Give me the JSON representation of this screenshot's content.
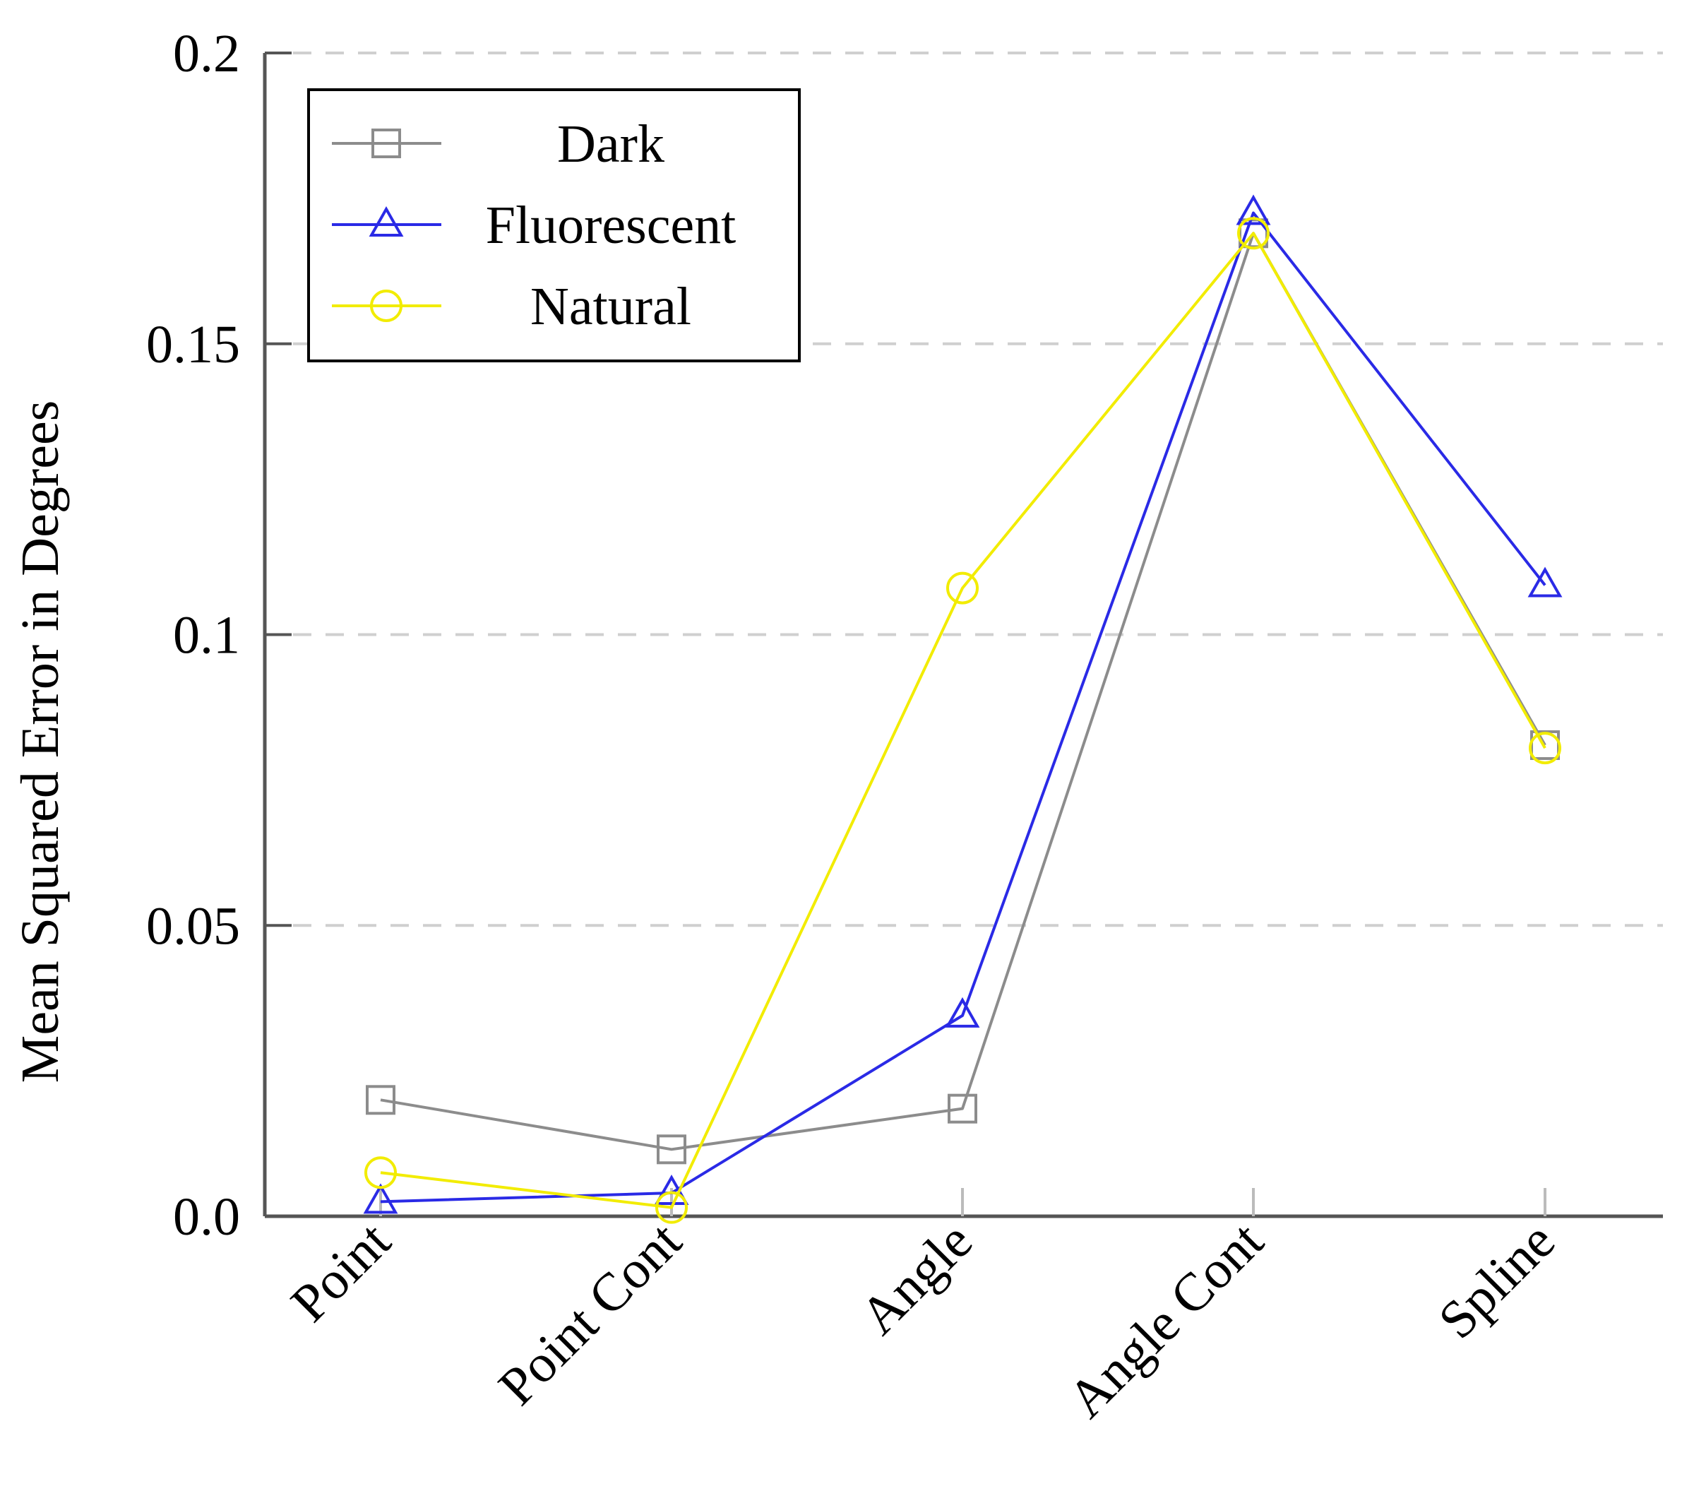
{
  "chart_data": {
    "type": "line",
    "title": "",
    "xlabel": "",
    "ylabel": "Mean Squared Error in Degrees",
    "categories": [
      "Point",
      "Point Cont",
      "Angle",
      "Angle Cont",
      "Spline"
    ],
    "ylim": [
      0,
      0.2
    ],
    "yticks": [
      {
        "value": 0,
        "label": "0.0"
      },
      {
        "value": 0.05,
        "label": "0.05"
      },
      {
        "value": 0.1,
        "label": "0.1"
      },
      {
        "value": 0.15,
        "label": "0.15"
      },
      {
        "value": 0.2,
        "label": "0.2"
      }
    ],
    "grid": "horizontal dashed",
    "legend_position": "top-left",
    "series": [
      {
        "name": "Dark",
        "color": "#8c8c8c",
        "marker": "square",
        "values": [
          0.02,
          0.0115,
          0.0185,
          0.169,
          0.081
        ]
      },
      {
        "name": "Fluorescent",
        "color": "#2a2ae6",
        "marker": "triangle",
        "values": [
          0.0025,
          0.004,
          0.0345,
          0.1725,
          0.1085
        ]
      },
      {
        "name": "Natural",
        "color": "#f2ec00",
        "marker": "circle",
        "values": [
          0.0075,
          0.0015,
          0.108,
          0.169,
          0.0805
        ]
      }
    ]
  }
}
